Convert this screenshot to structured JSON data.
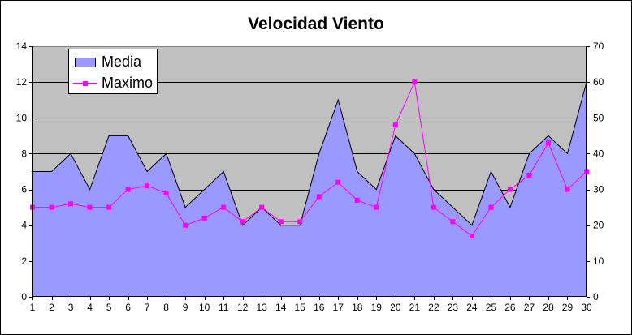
{
  "chart_data": {
    "type": "area",
    "title": "Velocidad Viento",
    "x": [
      1,
      2,
      3,
      4,
      5,
      6,
      7,
      8,
      9,
      10,
      11,
      12,
      13,
      14,
      15,
      16,
      17,
      18,
      19,
      20,
      21,
      22,
      23,
      24,
      25,
      26,
      27,
      28,
      29,
      30
    ],
    "series": [
      {
        "name": "Media",
        "type": "area",
        "axis": "left",
        "color": "#9999ff",
        "values": [
          7,
          7,
          8,
          6,
          9,
          9,
          7,
          8,
          5,
          6,
          7,
          4,
          5,
          4,
          4,
          8,
          11,
          7,
          6,
          9,
          8,
          6,
          5,
          4,
          7,
          5,
          8,
          9,
          8,
          12
        ]
      },
      {
        "name": "Maximo",
        "type": "line",
        "axis": "right",
        "color": "#ff00ff",
        "marker": "square",
        "values": [
          25,
          25,
          26,
          25,
          25,
          30,
          31,
          29,
          20,
          22,
          25,
          21,
          25,
          21,
          21,
          28,
          32,
          27,
          25,
          48,
          60,
          25,
          21,
          17,
          25,
          30,
          34,
          43,
          30,
          35
        ]
      }
    ],
    "y_left": {
      "min": 0,
      "max": 14,
      "ticks": [
        0,
        2,
        4,
        6,
        8,
        10,
        12,
        14
      ]
    },
    "y_right": {
      "min": 0,
      "max": 70,
      "ticks": [
        0,
        10,
        20,
        30,
        40,
        50,
        60,
        70
      ]
    },
    "plot_background": "#c0c0c0",
    "grid": true,
    "legend_position": "top-left"
  }
}
